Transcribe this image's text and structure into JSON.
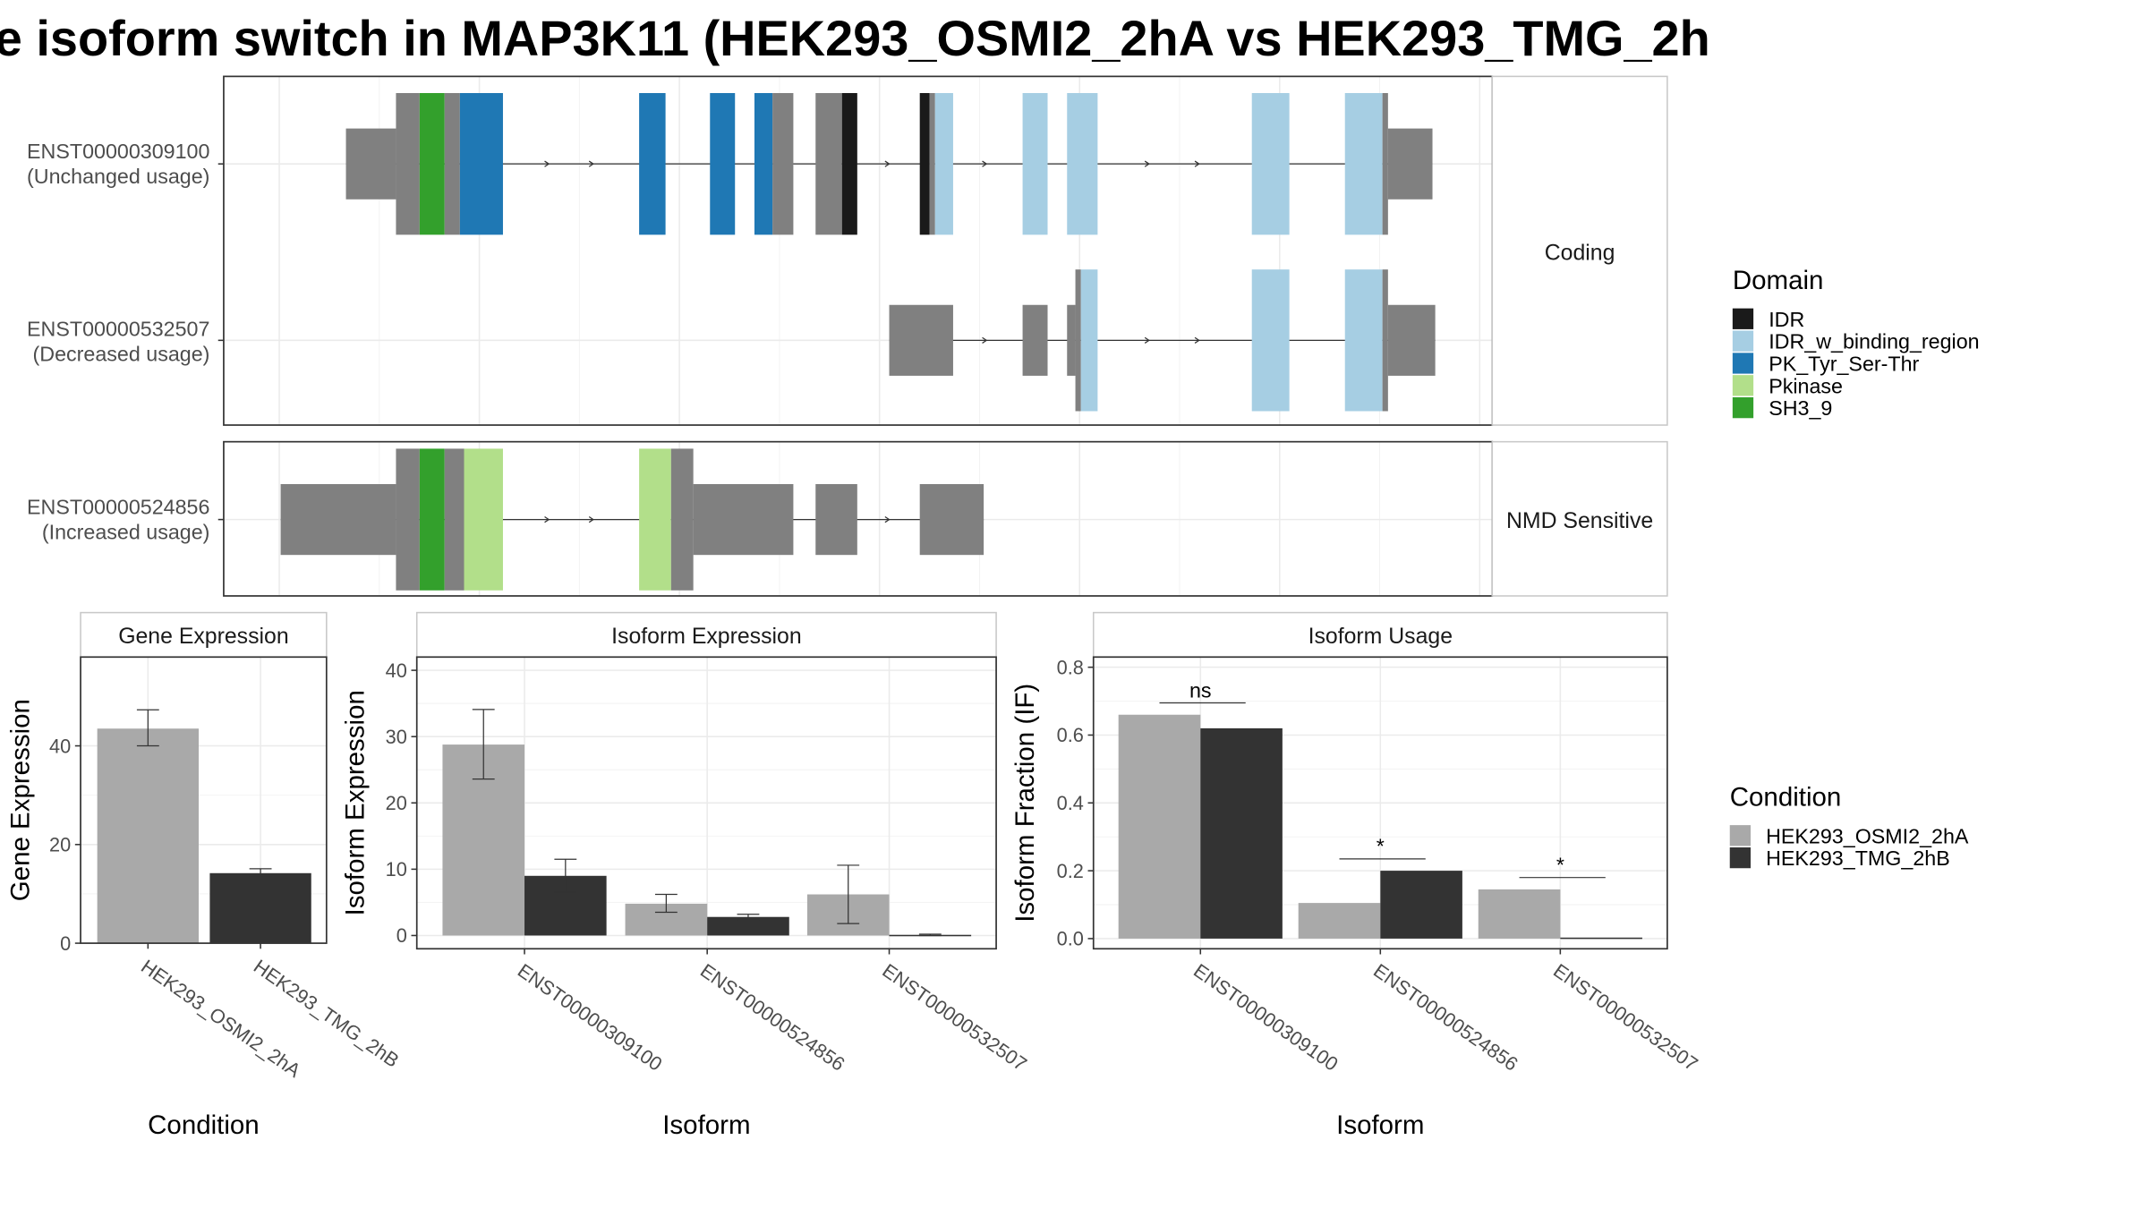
{
  "title": "e isoform switch in MAP3K11 (HEK293_OSMI2_2hA vs HEK293_TMG_2h",
  "colors": {
    "condition_a": "#a9a9a9",
    "condition_b": "#333333",
    "utr": "#808080",
    "IDR": "#1a1a1a",
    "IDR_w_binding_region": "#a6cee3",
    "PK_Tyr_Ser-Thr": "#1f78b4",
    "Pkinase": "#b2df8a",
    "SH3_9": "#33a02c"
  },
  "structure": {
    "coding_strip": "Coding",
    "nmd_strip": "NMD Sensitive",
    "transcripts": [
      {
        "id": "ENST00000309100",
        "usage": "(Unchanged usage)",
        "group": "coding"
      },
      {
        "id": "ENST00000532507",
        "usage": "(Decreased usage)",
        "group": "coding"
      },
      {
        "id": "ENST00000524856",
        "usage": "(Increased usage)",
        "group": "nmd"
      }
    ]
  },
  "domain_legend": {
    "title": "Domain",
    "items": [
      "IDR",
      "IDR_w_binding_region",
      "PK_Tyr_Ser-Thr",
      "Pkinase",
      "SH3_9"
    ]
  },
  "condition_legend": {
    "title": "Condition",
    "items": [
      "HEK293_OSMI2_2hA",
      "HEK293_TMG_2hB"
    ]
  },
  "chart_data": [
    {
      "type": "bar",
      "title": "Gene Expression",
      "xlabel": "Condition",
      "ylabel": "Gene Expression",
      "categories": [
        "HEK293_OSMI2_2hA",
        "HEK293_TMG_2hB"
      ],
      "values": [
        43.5,
        14.2
      ],
      "errors": [
        [
          40,
          47.3
        ],
        [
          13.6,
          15.1
        ]
      ],
      "yticks": [
        0,
        20,
        40
      ],
      "ylim": [
        0,
        58
      ]
    },
    {
      "type": "bar",
      "title": "Isoform Expression",
      "xlabel": "Isoform",
      "ylabel": "Isoform Expression",
      "categories": [
        "ENST00000309100",
        "ENST00000524856",
        "ENST00000532507"
      ],
      "series": [
        {
          "name": "HEK293_OSMI2_2hA",
          "values": [
            28.8,
            4.8,
            6.2
          ],
          "errors": [
            [
              23.6,
              34.1
            ],
            [
              3.5,
              6.2
            ],
            [
              1.8,
              10.6
            ]
          ]
        },
        {
          "name": "HEK293_TMG_2hB",
          "values": [
            9.0,
            2.8,
            0.1
          ],
          "errors": [
            [
              6.5,
              11.5
            ],
            [
              2.3,
              3.2
            ],
            [
              0,
              0.2
            ]
          ]
        }
      ],
      "yticks": [
        0,
        10,
        20,
        30,
        40
      ],
      "ylim": [
        -2,
        42
      ]
    },
    {
      "type": "bar",
      "title": "Isoform Usage",
      "xlabel": "Isoform",
      "ylabel": "Isoform Fraction (IF)",
      "categories": [
        "ENST00000309100",
        "ENST00000524856",
        "ENST00000532507"
      ],
      "series": [
        {
          "name": "HEK293_OSMI2_2hA",
          "values": [
            0.66,
            0.105,
            0.145
          ]
        },
        {
          "name": "HEK293_TMG_2hB",
          "values": [
            0.62,
            0.2,
            0.003
          ]
        }
      ],
      "significance": [
        "ns",
        "*",
        "*"
      ],
      "sig_y": [
        0.695,
        0.235,
        0.18
      ],
      "yticks": [
        "0.0",
        "0.2",
        "0.4",
        "0.6",
        "0.8"
      ],
      "ylim": [
        -0.03,
        0.83
      ]
    }
  ]
}
